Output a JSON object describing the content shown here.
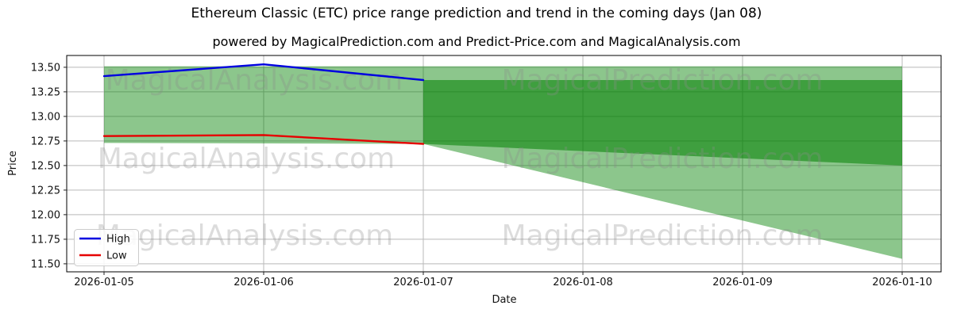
{
  "title": "Ethereum Classic (ETC) price range prediction and trend in the coming days (Jan 08)",
  "subtitle": "powered by MagicalPrediction.com and Predict-Price.com and MagicalAnalysis.com",
  "watermarks": {
    "left": "MagicalAnalysis.com",
    "right": "MagicalPrediction.com"
  },
  "legend": [
    {
      "label": "High",
      "color": "#0000e0"
    },
    {
      "label": "Low",
      "color": "#e60000"
    }
  ],
  "chart_data": {
    "type": "line",
    "title": "Ethereum Classic (ETC) price range prediction and trend in the coming days (Jan 08)",
    "xlabel": "Date",
    "ylabel": "Price",
    "x_ticks": [
      "2026-01-05",
      "2026-01-06",
      "2026-01-07",
      "2026-01-08",
      "2026-01-09",
      "2026-01-10"
    ],
    "y_ticks": [
      "11.50",
      "11.75",
      "12.00",
      "12.25",
      "12.50",
      "12.75",
      "13.00",
      "13.25",
      "13.50"
    ],
    "ylim": [
      11.42,
      13.62
    ],
    "grid": true,
    "legend_position": "lower left",
    "series": [
      {
        "name": "High",
        "color": "#0000e0",
        "x": [
          "2026-01-05",
          "2026-01-06",
          "2026-01-07"
        ],
        "values": [
          13.41,
          13.53,
          13.37
        ]
      },
      {
        "name": "Low",
        "color": "#e60000",
        "x": [
          "2026-01-05",
          "2026-01-06",
          "2026-01-07"
        ],
        "values": [
          12.8,
          12.81,
          12.72
        ]
      }
    ],
    "bands": [
      {
        "name": "overall-range",
        "fill": "#008000",
        "opacity": 0.45,
        "points": [
          [
            "2026-01-05",
            13.51
          ],
          [
            "2026-01-10",
            13.51
          ],
          [
            "2026-01-10",
            11.55
          ],
          [
            "2026-01-07",
            12.72
          ],
          [
            "2026-01-05",
            12.73
          ]
        ]
      },
      {
        "name": "forecast-range",
        "fill": "#008000",
        "opacity": 0.55,
        "points": [
          [
            "2026-01-07",
            13.37
          ],
          [
            "2026-01-10",
            13.37
          ],
          [
            "2026-01-10",
            12.5
          ],
          [
            "2026-01-07",
            12.72
          ]
        ]
      }
    ]
  }
}
